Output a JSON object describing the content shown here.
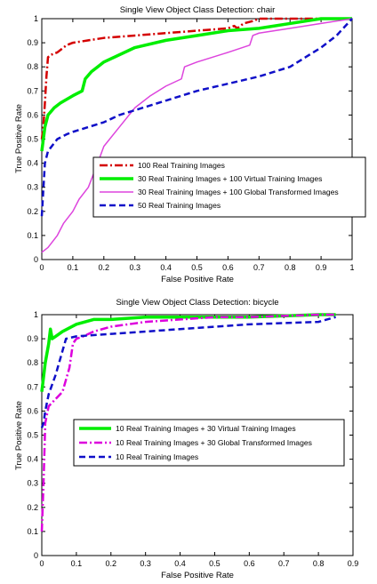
{
  "chart_data": [
    {
      "type": "line",
      "title": "Single View Object Class Detection: chair",
      "xlabel": "False Positive Rate",
      "ylabel": "True Positive Rate",
      "xlim": [
        0,
        1
      ],
      "ylim": [
        0,
        1
      ],
      "xticks": [
        0,
        0.1,
        0.2,
        0.3,
        0.4,
        0.5,
        0.6,
        0.7,
        0.8,
        0.9,
        1
      ],
      "xtick_labels": [
        "0",
        "0.1",
        "0.2",
        "0.3",
        "0.4",
        "0.5",
        "0.6",
        "0.7",
        "0.8",
        "0.9",
        "1"
      ],
      "yticks": [
        0,
        0.1,
        0.2,
        0.3,
        0.4,
        0.5,
        0.6,
        0.7,
        0.8,
        0.9,
        1
      ],
      "ytick_labels": [
        "0",
        "0.1",
        "0.2",
        "0.3",
        "0.4",
        "0.5",
        "0.6",
        "0.7",
        "0.8",
        "0.9",
        "1"
      ],
      "grid": false,
      "legend_position": "center-right",
      "series": [
        {
          "name": "100 Real Training Images",
          "color": "#d40000",
          "style": "dashdot",
          "x": [
            0,
            0.005,
            0.01,
            0.015,
            0.02,
            0.03,
            0.05,
            0.08,
            0.1,
            0.15,
            0.2,
            0.3,
            0.4,
            0.5,
            0.6,
            0.62,
            0.63,
            0.65,
            0.68,
            0.7,
            1.0
          ],
          "y": [
            0.5,
            0.55,
            0.65,
            0.76,
            0.84,
            0.85,
            0.86,
            0.89,
            0.9,
            0.91,
            0.92,
            0.93,
            0.94,
            0.95,
            0.96,
            0.97,
            0.96,
            0.98,
            0.99,
            1.0,
            1.0
          ]
        },
        {
          "name": "30 Real Training Images + 100 Virtual Training Images",
          "color": "#00ee00",
          "style": "solid",
          "x": [
            0,
            0.01,
            0.02,
            0.04,
            0.06,
            0.1,
            0.13,
            0.14,
            0.16,
            0.18,
            0.2,
            0.3,
            0.4,
            0.5,
            0.6,
            0.7,
            0.8,
            0.9,
            1.0
          ],
          "y": [
            0.45,
            0.55,
            0.6,
            0.63,
            0.65,
            0.68,
            0.7,
            0.75,
            0.78,
            0.8,
            0.82,
            0.88,
            0.91,
            0.93,
            0.95,
            0.96,
            0.98,
            1.0,
            1.0
          ]
        },
        {
          "name": "30 Real Training Images + 100 Global Transformed Images",
          "color": "#dd44dd",
          "style": "solid",
          "x": [
            0,
            0.02,
            0.05,
            0.07,
            0.1,
            0.12,
            0.15,
            0.18,
            0.2,
            0.25,
            0.3,
            0.35,
            0.4,
            0.45,
            0.46,
            0.5,
            0.6,
            0.67,
            0.68,
            0.7,
            0.8,
            0.9,
            1.0
          ],
          "y": [
            0.03,
            0.05,
            0.1,
            0.15,
            0.2,
            0.25,
            0.3,
            0.4,
            0.47,
            0.55,
            0.63,
            0.68,
            0.72,
            0.75,
            0.8,
            0.82,
            0.86,
            0.89,
            0.93,
            0.94,
            0.96,
            0.98,
            1.0
          ]
        },
        {
          "name": "50 Real Training Images",
          "color": "#1010c8",
          "style": "dashed",
          "x": [
            0,
            0.01,
            0.02,
            0.05,
            0.08,
            0.1,
            0.15,
            0.2,
            0.25,
            0.3,
            0.4,
            0.5,
            0.6,
            0.7,
            0.8,
            0.85,
            0.9,
            0.95,
            1.0
          ],
          "y": [
            0.18,
            0.4,
            0.45,
            0.5,
            0.52,
            0.53,
            0.55,
            0.57,
            0.6,
            0.62,
            0.66,
            0.7,
            0.73,
            0.76,
            0.8,
            0.84,
            0.88,
            0.93,
            1.0
          ]
        }
      ]
    },
    {
      "type": "line",
      "title": "Single View Object Class Detection: bicycle",
      "xlabel": "False Positive Rate",
      "ylabel": "True Positive Rate",
      "xlim": [
        0,
        0.9
      ],
      "ylim": [
        0,
        1
      ],
      "xticks": [
        0,
        0.1,
        0.2,
        0.3,
        0.4,
        0.5,
        0.6,
        0.7,
        0.8,
        0.9
      ],
      "xtick_labels": [
        "0",
        "0.1",
        "0.2",
        "0.3",
        "0.4",
        "0.5",
        "0.6",
        "0.7",
        "0.8",
        "0.9"
      ],
      "yticks": [
        0,
        0.1,
        0.2,
        0.3,
        0.4,
        0.5,
        0.6,
        0.7,
        0.8,
        0.9,
        1
      ],
      "ytick_labels": [
        "0",
        "0.1",
        "0.2",
        "0.3",
        "0.4",
        "0.5",
        "0.6",
        "0.7",
        "0.8",
        "0.9",
        "1"
      ],
      "grid": false,
      "legend_position": "center",
      "series": [
        {
          "name": "10 Real Training Images + 30 Virtual Training Images",
          "color": "#00ee00",
          "style": "solid",
          "x": [
            0,
            0.01,
            0.02,
            0.025,
            0.03,
            0.04,
            0.06,
            0.1,
            0.15,
            0.2,
            0.3,
            0.4,
            0.5,
            0.6,
            0.7,
            0.8,
            0.85
          ],
          "y": [
            0.68,
            0.8,
            0.88,
            0.94,
            0.9,
            0.91,
            0.93,
            0.96,
            0.98,
            0.98,
            0.99,
            0.99,
            0.99,
            0.99,
            0.995,
            1.0,
            1.0
          ]
        },
        {
          "name": "10 Real Training Images + 30 Global Transformed Images",
          "color": "#dd00dd",
          "style": "dashdot",
          "x": [
            0,
            0.005,
            0.01,
            0.02,
            0.04,
            0.06,
            0.08,
            0.09,
            0.1,
            0.12,
            0.15,
            0.2,
            0.3,
            0.4,
            0.5,
            0.6,
            0.7,
            0.8,
            0.85
          ],
          "y": [
            0.1,
            0.3,
            0.55,
            0.62,
            0.65,
            0.68,
            0.78,
            0.88,
            0.9,
            0.91,
            0.93,
            0.95,
            0.97,
            0.98,
            0.99,
            0.99,
            0.995,
            1.0,
            1.0
          ]
        },
        {
          "name": "10 Real Training Images",
          "color": "#1010c8",
          "style": "dashed",
          "x": [
            0,
            0.005,
            0.01,
            0.02,
            0.04,
            0.06,
            0.07,
            0.1,
            0.2,
            0.3,
            0.4,
            0.5,
            0.6,
            0.7,
            0.8,
            0.85
          ],
          "y": [
            0.53,
            0.55,
            0.6,
            0.67,
            0.75,
            0.85,
            0.9,
            0.91,
            0.92,
            0.93,
            0.94,
            0.95,
            0.96,
            0.965,
            0.97,
            0.99
          ]
        }
      ]
    }
  ]
}
